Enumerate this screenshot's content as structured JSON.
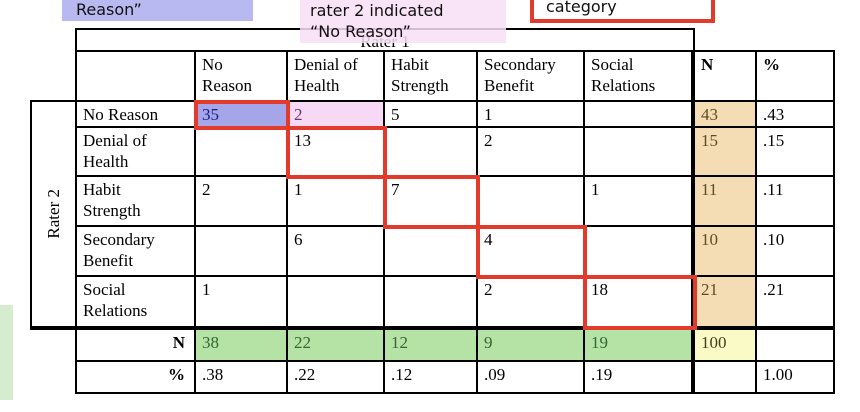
{
  "annotations": {
    "no_reason_note": "Reason”",
    "rater2_note_line1": "rater 2 indicated",
    "rater2_note_line2": "“No Reason”",
    "category_note": "category"
  },
  "colors": {
    "annotation_lavender": "#b8b9f0",
    "annotation_pink": "#f8def6",
    "red_outline": "#e23a2b",
    "highlight_blue": "#a5a5e9",
    "highlight_pink": "#f7d9f6",
    "n_column_tan": "#f4dcb4",
    "total_yellow": "#fafac6",
    "n_row_green": "#b5e3a5",
    "green_strip": "#d6eccf"
  },
  "table": {
    "rater1_label": "Rater 1",
    "rater2_label": "Rater 2",
    "n_header": "N",
    "pct_header": "%",
    "col_headers": [
      {
        "line1": "No",
        "line2": "Reason"
      },
      {
        "line1": "Denial of",
        "line2": "Health"
      },
      {
        "line1": "Habit",
        "line2": "Strength"
      },
      {
        "line1": "Secondary",
        "line2": "Benefit"
      },
      {
        "line1": "Social",
        "line2": "Relations"
      }
    ],
    "rows": [
      {
        "label_line1": "No Reason",
        "label_line2": "",
        "values": [
          "35",
          "2",
          "5",
          "1",
          ""
        ],
        "n": "43",
        "pct": ".43"
      },
      {
        "label_line1": "Denial of",
        "label_line2": "Health",
        "values": [
          "",
          "13",
          "",
          "2",
          ""
        ],
        "n": "15",
        "pct": ".15"
      },
      {
        "label_line1": "Habit",
        "label_line2": "Strength",
        "values": [
          "2",
          "1",
          "7",
          "",
          "1"
        ],
        "n": "11",
        "pct": ".11"
      },
      {
        "label_line1": "Secondary",
        "label_line2": "Benefit",
        "values": [
          "",
          "6",
          "",
          "4",
          ""
        ],
        "n": "10",
        "pct": ".10"
      },
      {
        "label_line1": "Social",
        "label_line2": "Relations",
        "values": [
          "1",
          "",
          "",
          "2",
          "18"
        ],
        "n": "21",
        "pct": ".21"
      }
    ],
    "summary_n": {
      "label": "N",
      "values": [
        "38",
        "22",
        "12",
        "9",
        "19"
      ],
      "total": "100",
      "pct": ""
    },
    "summary_pct": {
      "label": "%",
      "values": [
        ".38",
        ".22",
        ".12",
        ".09",
        ".19"
      ],
      "n": "",
      "total": "1.00"
    }
  }
}
